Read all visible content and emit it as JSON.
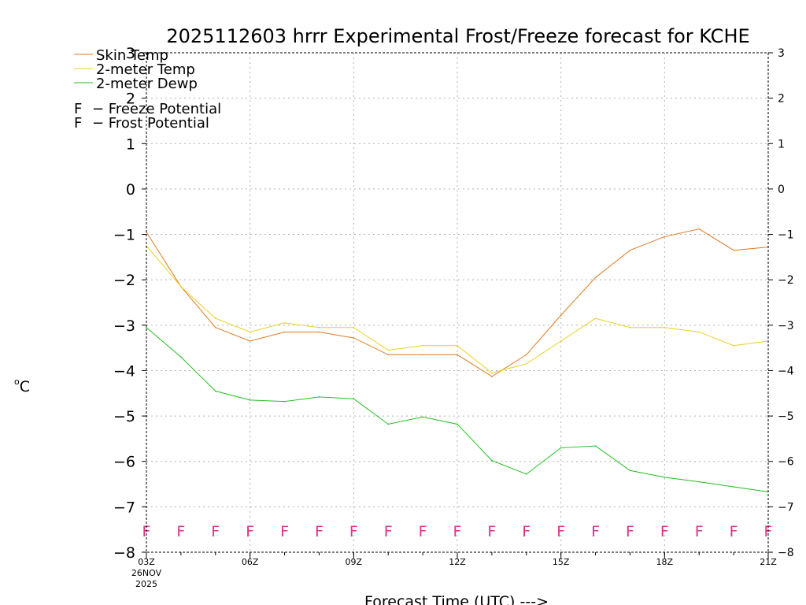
{
  "chart_data": {
    "type": "line",
    "title": "2025112603 hrrr Experimental Frost/Freeze forecast for KCHE",
    "xlabel": "Forecast Time (UTC) --->",
    "ylabel": "°C",
    "ylabel_parts": {
      "degree": "o",
      "unit": "C"
    },
    "ylim": [
      -8,
      3
    ],
    "yticks": [
      3,
      2,
      1,
      0,
      -1,
      -2,
      -3,
      -4,
      -5,
      -6,
      -7,
      -8
    ],
    "ytick_labels": [
      "3",
      "2",
      "1",
      "0",
      "−1",
      "−2",
      "−3",
      "−4",
      "−5",
      "−6",
      "−7",
      "−8"
    ],
    "x_hours": [
      3,
      4,
      5,
      6,
      7,
      8,
      9,
      10,
      11,
      12,
      13,
      14,
      15,
      16,
      17,
      18,
      19,
      20,
      21
    ],
    "xlim": [
      3,
      21
    ],
    "xticks": [
      {
        "hour": 3,
        "label": "03Z",
        "sub1": "26NOV",
        "sub2": "2025"
      },
      {
        "hour": 6,
        "label": "06Z"
      },
      {
        "hour": 9,
        "label": "09Z"
      },
      {
        "hour": 12,
        "label": "12Z"
      },
      {
        "hour": 15,
        "label": "15Z"
      },
      {
        "hour": 18,
        "label": "18Z"
      },
      {
        "hour": 21,
        "label": "21Z"
      }
    ],
    "grid": true,
    "series": [
      {
        "name": "Skin Temp",
        "color": "#e07a20",
        "values": [
          -0.95,
          -2.15,
          -3.05,
          -3.35,
          -3.15,
          -3.15,
          -3.28,
          -3.65,
          -3.65,
          -3.65,
          -4.13,
          -3.65,
          -2.78,
          -1.95,
          -1.35,
          -1.05,
          -0.88,
          -1.35,
          -1.28
        ]
      },
      {
        "name": "2-meter Temp",
        "color": "#e8d020",
        "values": [
          -1.25,
          -2.15,
          -2.85,
          -3.15,
          -2.95,
          -3.05,
          -3.05,
          -3.55,
          -3.45,
          -3.45,
          -4.05,
          -3.85,
          -3.35,
          -2.85,
          -3.05,
          -3.05,
          -3.15,
          -3.45,
          -3.35
        ]
      },
      {
        "name": "2-meter Dewp",
        "color": "#20c020",
        "values": [
          -3.05,
          -3.7,
          -4.45,
          -4.65,
          -4.68,
          -4.58,
          -4.62,
          -5.18,
          -5.02,
          -5.18,
          -5.98,
          -6.28,
          -5.7,
          -5.66,
          -6.2,
          -6.35,
          -6.45,
          -6.56,
          -6.67
        ]
      }
    ],
    "flags": {
      "letter": "F",
      "freeze_color": "#e0308a",
      "frost_color": "#5060f0",
      "freeze_label": "F − Freeze Potential",
      "frost_label": "F − Frost Potential",
      "freeze_hours": [
        3,
        4,
        5,
        6,
        7,
        8,
        9,
        10,
        11,
        12,
        13,
        14,
        15,
        16,
        17,
        18,
        19,
        20,
        21
      ]
    },
    "legend": {
      "placement": "top-left",
      "entries": [
        "Skin Temp",
        "2-meter Temp",
        "2-meter Dewp"
      ],
      "freeze_text": "− Freeze Potential",
      "frost_text": "− Frost Potential"
    }
  }
}
